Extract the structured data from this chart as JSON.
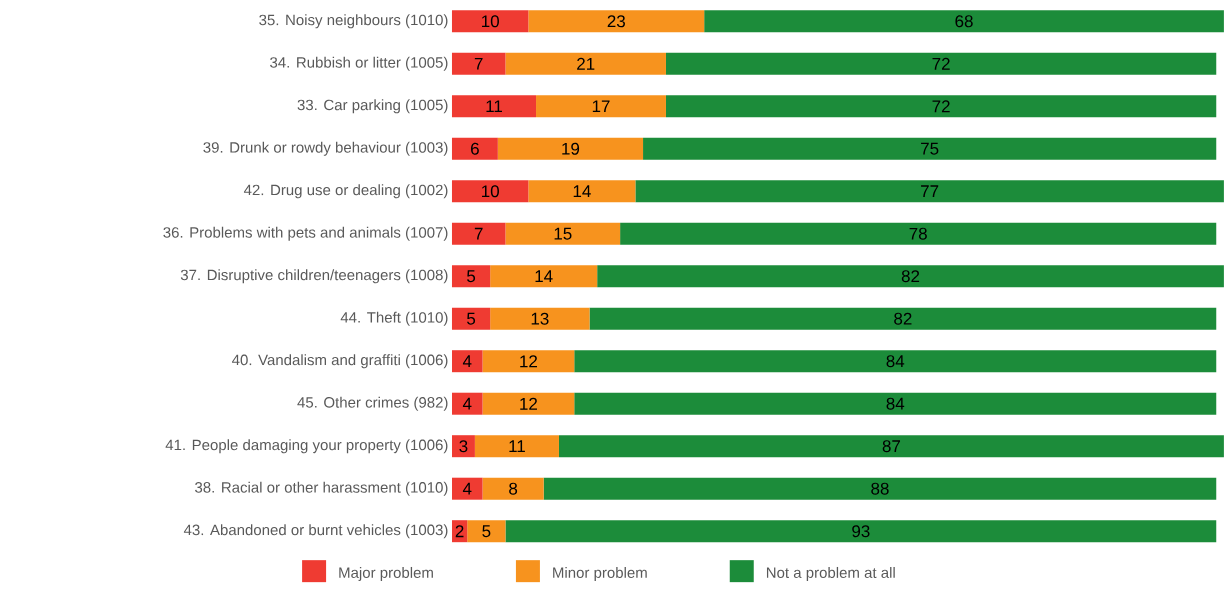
{
  "chart_data": {
    "type": "bar",
    "orientation": "horizontal",
    "stacked": true,
    "data_labels": true,
    "legend": "bottom",
    "tick_labels": "y",
    "categories": [
      "35. Noisy neighbours (1010)",
      "34. Rubbish or litter (1005)",
      "33. Car parking (1005)",
      "39. Drunk or rowdy behaviour (1003)",
      "42. Drug use or dealing (1002)",
      "36. Problems with pets and animals (1007)",
      "37. Disruptive children/teenagers (1008)",
      "44. Theft (1010)",
      "40. Vandalism and graffiti (1006)",
      "45. Other crimes (982)",
      "41. People damaging your property (1006)",
      "38. Racial or other harassment (1010)",
      "43. Abandoned or burnt vehicles (1003)"
    ],
    "series": [
      {
        "name": "Major problem",
        "color": "#ef3b32",
        "values": [
          10,
          7,
          11,
          6,
          10,
          7,
          5,
          5,
          4,
          4,
          3,
          4,
          2
        ]
      },
      {
        "name": "Minor problem",
        "color": "#f7931e",
        "values": [
          23,
          21,
          17,
          19,
          14,
          15,
          14,
          13,
          12,
          12,
          11,
          8,
          5
        ]
      },
      {
        "name": "Not a problem at all",
        "color": "#1c8c3a",
        "values": [
          68,
          72,
          72,
          75,
          77,
          78,
          82,
          82,
          84,
          84,
          87,
          88,
          93
        ]
      }
    ]
  }
}
